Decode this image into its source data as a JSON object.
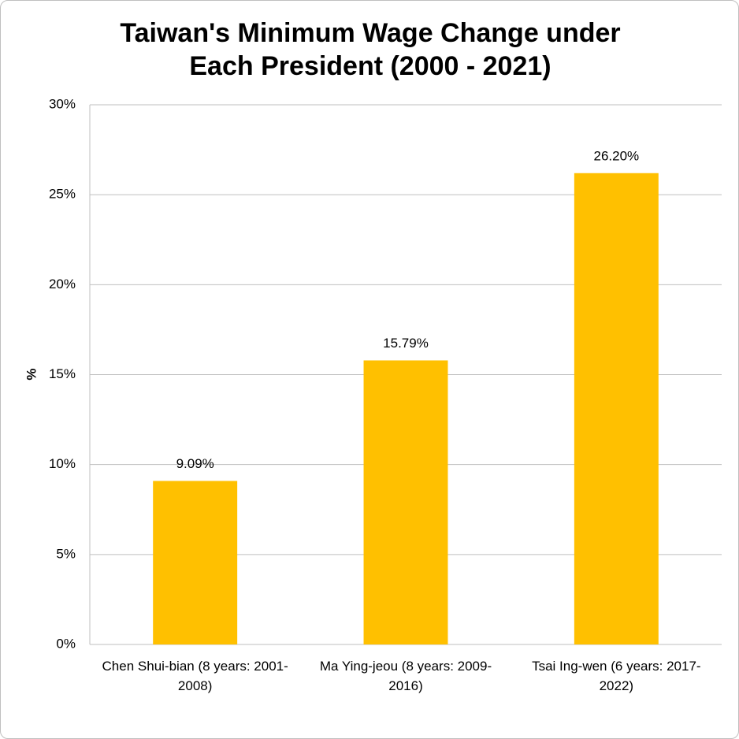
{
  "chart_data": {
    "type": "bar",
    "title": "Taiwan's Minimum Wage Change under Each President (2000 - 2021)",
    "y_label": "%",
    "categories": [
      "Chen Shui-bian (8 years: 2001-2008)",
      "Ma Ying-jeou (8 years: 2009-2016)",
      "Tsai Ing-wen (6 years: 2017-2022)"
    ],
    "values": [
      9.09,
      15.79,
      26.2
    ],
    "value_labels": [
      "9.09%",
      "15.79%",
      "26.20%"
    ],
    "color": "#ffc000",
    "ylim": [
      0,
      30
    ],
    "yticks": [
      {
        "value": 0,
        "label": "0%"
      },
      {
        "value": 5,
        "label": "5%"
      },
      {
        "value": 10,
        "label": "10%"
      },
      {
        "value": 15,
        "label": "15%"
      },
      {
        "value": 20,
        "label": "20%"
      },
      {
        "value": 25,
        "label": "25%"
      },
      {
        "value": 30,
        "label": "30%"
      }
    ],
    "grid": true
  }
}
